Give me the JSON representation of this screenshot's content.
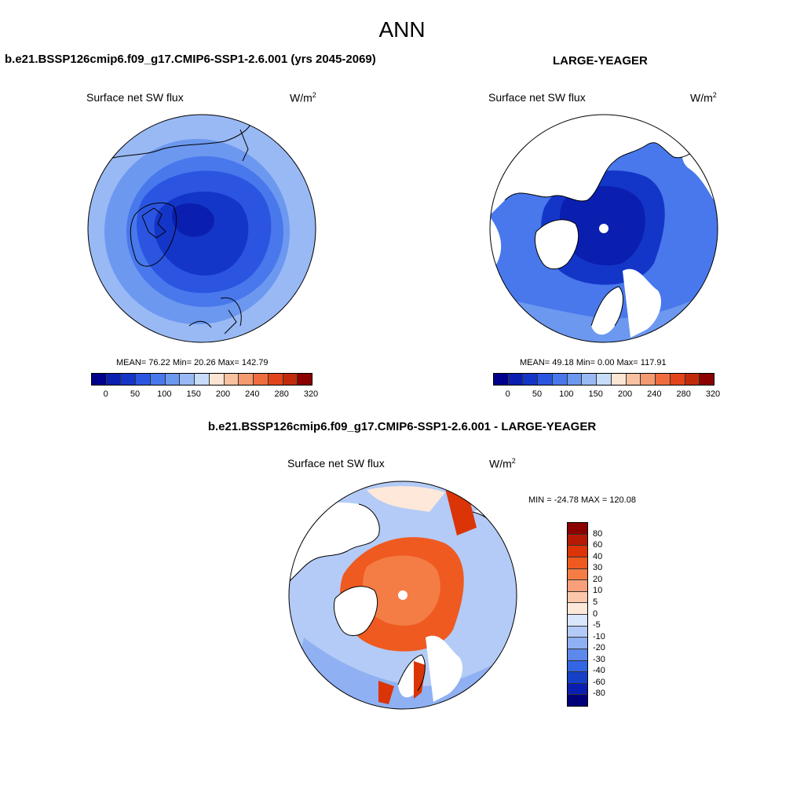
{
  "title": "ANN",
  "panels": {
    "top_left": {
      "case": "b.e21.BSSP126cmip6.f09_g17.CMIP6-SSP1-2.6.001 (yrs 2045-2069)",
      "variable": "Surface net SW flux",
      "units": "W/m",
      "units_sup": "2",
      "stats": "MEAN=  76.22  Min=  20.26  Max= 142.79",
      "colorbar_ticks": [
        "0",
        "50",
        "100",
        "150",
        "200",
        "240",
        "280",
        "320"
      ]
    },
    "top_right": {
      "case": "LARGE-YEAGER",
      "variable": "Surface net SW flux",
      "units": "W/m",
      "units_sup": "2",
      "stats": "MEAN=  49.18  Min=   0.00  Max= 117.91",
      "colorbar_ticks": [
        "0",
        "50",
        "100",
        "150",
        "200",
        "240",
        "280",
        "320"
      ]
    },
    "bottom": {
      "case": "b.e21.BSSP126cmip6.f09_g17.CMIP6-SSP1-2.6.001 - LARGE-YEAGER",
      "variable": "Surface net SW flux",
      "units": "W/m",
      "units_sup": "2",
      "stats": "MIN = -24.78 MAX = 120.08",
      "colorbar_ticks": [
        "80",
        "60",
        "40",
        "30",
        "20",
        "10",
        "5",
        "0",
        "-5",
        "-10",
        "-20",
        "-30",
        "-40",
        "-60",
        "-80"
      ]
    }
  },
  "colors": {
    "abs_scale": [
      "#00008b",
      "#0a1fb0",
      "#1436c8",
      "#2b55e0",
      "#4878ec",
      "#6c98f0",
      "#99b9f5",
      "#c6dcf9",
      "#fde5d4",
      "#f8c1a0",
      "#f49a70",
      "#ef6c3e",
      "#e3441b",
      "#c12b0c",
      "#8b0000"
    ],
    "diff_scale": [
      "#8b0000",
      "#b51a04",
      "#da3407",
      "#ef5a20",
      "#f47d45",
      "#f7a07a",
      "#fbc6a9",
      "#fde8da",
      "#d9e6fb",
      "#b3cbf6",
      "#8fb0f2",
      "#5d89ec",
      "#3266e3",
      "#1540c8",
      "#0a1fb0",
      "#00007a"
    ],
    "land": "#ffffff"
  }
}
